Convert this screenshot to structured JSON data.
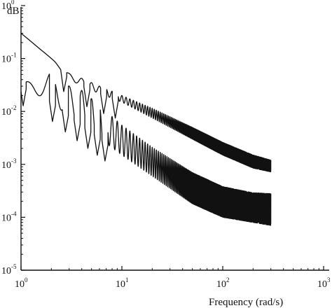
{
  "chart_data": {
    "type": "line",
    "title": "",
    "xlabel": "Frequency (rad/s)",
    "ylabel": "dB",
    "xscale": "log",
    "yscale": "log",
    "xlim": [
      1,
      1000
    ],
    "ylim": [
      1e-05,
      1
    ],
    "grid": false,
    "legend": "none",
    "x_ticks": [
      {
        "base": "10",
        "exp": "0",
        "value": 1
      },
      {
        "base": "10",
        "exp": "1",
        "value": 10
      },
      {
        "base": "10",
        "exp": "2",
        "value": 100
      },
      {
        "base": "10",
        "exp": "3",
        "value": 1000
      }
    ],
    "y_ticks": [
      {
        "base": "10",
        "exp": "-5",
        "value": 1e-05
      },
      {
        "base": "10",
        "exp": "-4",
        "value": 0.0001
      },
      {
        "base": "10",
        "exp": "-3",
        "value": 0.001
      },
      {
        "base": "10",
        "exp": "-2",
        "value": 0.01
      },
      {
        "base": "10",
        "exp": "-1",
        "value": 0.1
      },
      {
        "base": "10",
        "exp": "0",
        "value": 1
      }
    ],
    "x_range_plotted": [
      1,
      300
    ],
    "series": [
      {
        "color": "#111111",
        "description_points": {
          "upper_envelope": {
            "x": [
              1,
              1.5,
              2,
              3,
              3.9,
              6,
              8,
              10,
              20,
              50,
              100,
              200,
              300
            ],
            "y": [
              0.3,
              0.16,
              0.1,
              0.052,
              0.043,
              0.03,
              0.024,
              0.02,
              0.0115,
              0.005,
              0.0026,
              0.0015,
              0.0012
            ]
          },
          "lower_envelope": {
            "x": [
              1,
              2,
              3,
              5,
              10,
              20,
              50,
              100,
              200,
              300
            ],
            "y": [
              0.3,
              0.1,
              0.04,
              0.025,
              0.015,
              0.0075,
              0.003,
              0.0015,
              0.00085,
              0.00072
            ]
          },
          "notch_x": [
            2.65,
            4.5,
            6.6,
            8.6
          ]
        }
      },
      {
        "color": "#111111",
        "description_points": {
          "upper_envelope": {
            "x": [
              1,
              1.35,
              1.7,
              2.3,
              3,
              4,
              6,
              10,
              20,
              50,
              100,
              200,
              300
            ],
            "y": [
              0.03,
              0.055,
              0.06,
              0.05,
              0.03,
              0.025,
              0.013,
              0.0055,
              0.0021,
              0.0007,
              0.00038,
              0.00029,
              0.00028
            ]
          },
          "lower_envelope": {
            "x": [
              1,
              2,
              3,
              5,
              10,
              20,
              50,
              100,
              200,
              300
            ],
            "y": [
              0.03,
              0.015,
              0.008,
              0.004,
              0.0015,
              0.0006,
              0.00018,
              0.0001,
              8e-05,
              7e-05
            ]
          },
          "notch_x": [
            1.05,
            2.05,
            2.75,
            3.6,
            4.6,
            5.7,
            6.8
          ]
        }
      }
    ]
  }
}
